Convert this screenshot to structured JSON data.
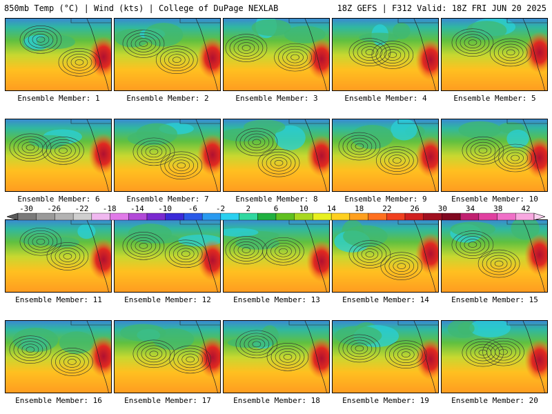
{
  "header": {
    "left": "850mb Temp (°C) | Wind (kts) | College of DuPage NEXLAB",
    "right": "18Z GEFS | F312 Valid: 18Z FRI JUN 20 2025"
  },
  "colorbar": {
    "ticks": [
      "-30",
      "-26",
      "-22",
      "-18",
      "-14",
      "-10",
      "-6",
      "-2",
      "2",
      "6",
      "10",
      "14",
      "18",
      "22",
      "26",
      "30",
      "34",
      "38",
      "42"
    ],
    "colors": [
      "#7a7a7a",
      "#9a9a9a",
      "#b3b3b3",
      "#cfcfcf",
      "#f0b8f0",
      "#e07ae8",
      "#b24ad8",
      "#7a2ad0",
      "#3a2ad8",
      "#2a5ae8",
      "#2a9af0",
      "#2ad0f0",
      "#30d8a0",
      "#20b040",
      "#60c020",
      "#a8d820",
      "#e8f020",
      "#ffd020",
      "#ffa020",
      "#ff7020",
      "#f04020",
      "#d02020",
      "#a01020",
      "#800820",
      "#c02070",
      "#e040a0",
      "#f070c8",
      "#f8a8e0"
    ],
    "min": -30,
    "max": 42
  },
  "members": [
    {
      "label": "Ensemble Member: 1"
    },
    {
      "label": "Ensemble Member: 2"
    },
    {
      "label": "Ensemble Member: 3"
    },
    {
      "label": "Ensemble Member: 4"
    },
    {
      "label": "Ensemble Member: 5"
    },
    {
      "label": "Ensemble Member: 6"
    },
    {
      "label": "Ensemble Member: 7"
    },
    {
      "label": "Ensemble Member: 8"
    },
    {
      "label": "Ensemble Member: 9"
    },
    {
      "label": "Ensemble Member: 10"
    },
    {
      "label": "Ensemble Member: 11"
    },
    {
      "label": "Ensemble Member: 12"
    },
    {
      "label": "Ensemble Member: 13"
    },
    {
      "label": "Ensemble Member: 14"
    },
    {
      "label": "Ensemble Member: 15"
    },
    {
      "label": "Ensemble Member: 16"
    },
    {
      "label": "Ensemble Member: 17"
    },
    {
      "label": "Ensemble Member: 18"
    },
    {
      "label": "Ensemble Member: 19"
    },
    {
      "label": "Ensemble Member: 20"
    }
  ]
}
